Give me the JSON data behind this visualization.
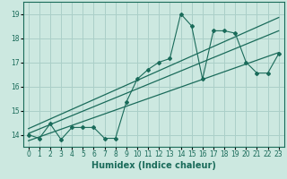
{
  "xlabel": "Humidex (Indice chaleur)",
  "ylabel": "",
  "bg_color": "#cce8e0",
  "grid_color": "#aacfc8",
  "line_color": "#1a6b5a",
  "xlim": [
    -0.5,
    23.5
  ],
  "ylim": [
    13.5,
    19.5
  ],
  "xticks": [
    0,
    1,
    2,
    3,
    4,
    5,
    6,
    7,
    8,
    9,
    10,
    11,
    12,
    13,
    14,
    15,
    16,
    17,
    18,
    19,
    20,
    21,
    22,
    23
  ],
  "yticks": [
    14,
    15,
    16,
    17,
    18,
    19
  ],
  "scatter_x": [
    0,
    1,
    2,
    3,
    4,
    5,
    6,
    7,
    8,
    9,
    10,
    11,
    12,
    13,
    14,
    15,
    16,
    17,
    18,
    19,
    20,
    21,
    22,
    23
  ],
  "scatter_y": [
    14.0,
    13.85,
    14.45,
    13.8,
    14.3,
    14.3,
    14.3,
    13.85,
    13.85,
    15.35,
    16.3,
    16.7,
    17.0,
    17.15,
    19.0,
    18.5,
    16.3,
    18.3,
    18.3,
    18.2,
    17.0,
    16.55,
    16.55,
    17.35
  ],
  "trend1_x": [
    0,
    23
  ],
  "trend1_y": [
    14.05,
    18.3
  ],
  "trend2_x": [
    0,
    23
  ],
  "trend2_y": [
    13.75,
    17.4
  ],
  "trend3_x": [
    0,
    23
  ],
  "trend3_y": [
    14.25,
    18.85
  ]
}
